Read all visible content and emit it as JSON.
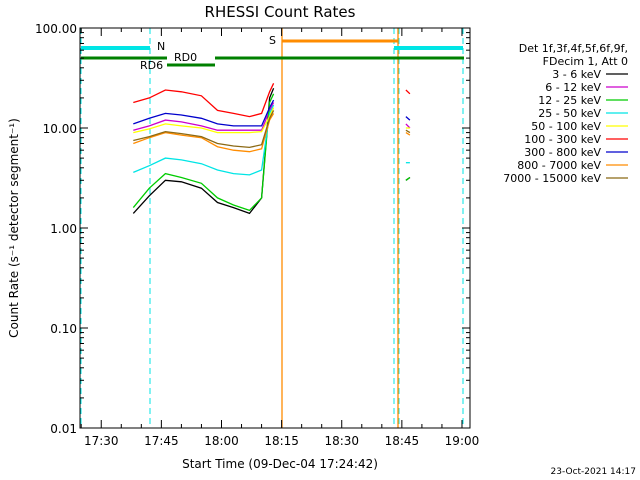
{
  "chart_data": {
    "type": "line",
    "title": "RHESSI Count Rates",
    "xlabel": "Start Time (09-Dec-04 17:24:42)",
    "ylabel": "Count Rate (s⁻¹ detector segment⁻¹)",
    "y_scale": "log",
    "ylim": [
      0.01,
      100
    ],
    "xlim": [
      "17:24:42",
      "19:02:00"
    ],
    "x_tick_labels": [
      "17:30",
      "17:45",
      "18:00",
      "18:15",
      "18:30",
      "18:45",
      "19:00"
    ],
    "y_tick_labels": [
      "0.01",
      "0.10",
      "1.00",
      "10.00",
      "100.00"
    ],
    "legend_header": [
      "Det 1f,3f,4f,5f,6f,9f,",
      "FDecim 1, Att 0"
    ],
    "legend_position": "right",
    "series": [
      {
        "name": "3 - 6 keV",
        "color": "#000000",
        "x": [
          "17:38",
          "17:42",
          "17:46",
          "17:50",
          "17:55",
          "17:59",
          "18:03",
          "18:07",
          "18:10",
          "18:12",
          "18:13",
          "18:46",
          "18:47"
        ],
        "values": [
          1.4,
          2.1,
          3.0,
          2.9,
          2.5,
          1.8,
          1.6,
          1.4,
          2.0,
          20,
          25,
          3.0,
          3.2
        ]
      },
      {
        "name": "6 - 12 keV",
        "color": "#cc00cc",
        "x": [
          "17:38",
          "17:42",
          "17:46",
          "17:50",
          "17:55",
          "17:59",
          "18:03",
          "18:07",
          "18:10",
          "18:12",
          "18:13",
          "18:46",
          "18:47"
        ],
        "values": [
          9.5,
          10.5,
          12.0,
          11.5,
          10.5,
          9.5,
          9.5,
          9.5,
          9.5,
          15,
          18,
          11,
          10
        ]
      },
      {
        "name": "12 - 25 keV",
        "color": "#00cc00",
        "x": [
          "17:38",
          "17:42",
          "17:46",
          "17:50",
          "17:55",
          "17:59",
          "18:03",
          "18:07",
          "18:10",
          "18:12",
          "18:13",
          "18:46",
          "18:47"
        ],
        "values": [
          1.6,
          2.5,
          3.5,
          3.2,
          2.8,
          2.0,
          1.7,
          1.5,
          2.0,
          18,
          22,
          3.0,
          3.2
        ]
      },
      {
        "name": "25 - 50 keV",
        "color": "#00e5e5",
        "x": [
          "17:38",
          "17:42",
          "17:46",
          "17:50",
          "17:55",
          "17:59",
          "18:03",
          "18:07",
          "18:10",
          "18:12",
          "18:13",
          "18:46",
          "18:47"
        ],
        "values": [
          3.6,
          4.2,
          5.0,
          4.8,
          4.4,
          3.8,
          3.5,
          3.4,
          3.8,
          14,
          17,
          4.5,
          4.5
        ]
      },
      {
        "name": "50 - 100 keV",
        "color": "#ffff00",
        "x": [
          "17:38",
          "17:42",
          "17:46",
          "17:50",
          "17:55",
          "17:59",
          "18:03",
          "18:07",
          "18:10",
          "18:12",
          "18:13",
          "18:46",
          "18:47"
        ],
        "values": [
          9.0,
          9.8,
          11.0,
          10.5,
          10.0,
          9.0,
          9.0,
          9.0,
          9.2,
          13,
          16,
          10,
          10
        ]
      },
      {
        "name": "100 - 300 keV",
        "color": "#ff0000",
        "x": [
          "17:38",
          "17:42",
          "17:46",
          "17:50",
          "17:55",
          "17:59",
          "18:03",
          "18:07",
          "18:10",
          "18:12",
          "18:13",
          "18:46",
          "18:47"
        ],
        "values": [
          18,
          20,
          24,
          23,
          21,
          15,
          14,
          13,
          14,
          23,
          28,
          24,
          22
        ]
      },
      {
        "name": "300 - 800 keV",
        "color": "#0000cc",
        "x": [
          "17:38",
          "17:42",
          "17:46",
          "17:50",
          "17:55",
          "17:59",
          "18:03",
          "18:07",
          "18:10",
          "18:12",
          "18:13",
          "18:46",
          "18:47"
        ],
        "values": [
          11,
          12.5,
          14,
          13.5,
          12.5,
          11,
          10.5,
          10.5,
          10.5,
          16,
          19,
          13,
          12
        ]
      },
      {
        "name": "800 - 7000 keV",
        "color": "#ff8c00",
        "x": [
          "17:38",
          "17:42",
          "17:46",
          "17:50",
          "17:55",
          "17:59",
          "18:03",
          "18:07",
          "18:10",
          "18:12",
          "18:13",
          "18:46",
          "18:47"
        ],
        "values": [
          7.0,
          8.0,
          9.0,
          8.5,
          8.0,
          6.5,
          6.0,
          5.8,
          6.2,
          12,
          14,
          9,
          8.5
        ]
      },
      {
        "name": "7000 - 15000 keV",
        "color": "#8b6914",
        "x": [
          "17:38",
          "17:42",
          "17:46",
          "17:50",
          "17:55",
          "17:59",
          "18:03",
          "18:07",
          "18:10",
          "18:12",
          "18:13",
          "18:46",
          "18:47"
        ],
        "values": [
          7.5,
          8.2,
          9.2,
          8.8,
          8.2,
          7.0,
          6.6,
          6.4,
          6.8,
          12.5,
          15,
          9.5,
          9.0
        ]
      }
    ],
    "annotations": [
      {
        "label": "N",
        "color": "#00e5e5"
      },
      {
        "label": "S",
        "color": "#ff8c00"
      },
      {
        "label": "RD6",
        "color": "#008000"
      },
      {
        "label": "RD0",
        "color": "#008000"
      }
    ]
  },
  "footer": {
    "date": "23-Oct-2021 14:17"
  }
}
